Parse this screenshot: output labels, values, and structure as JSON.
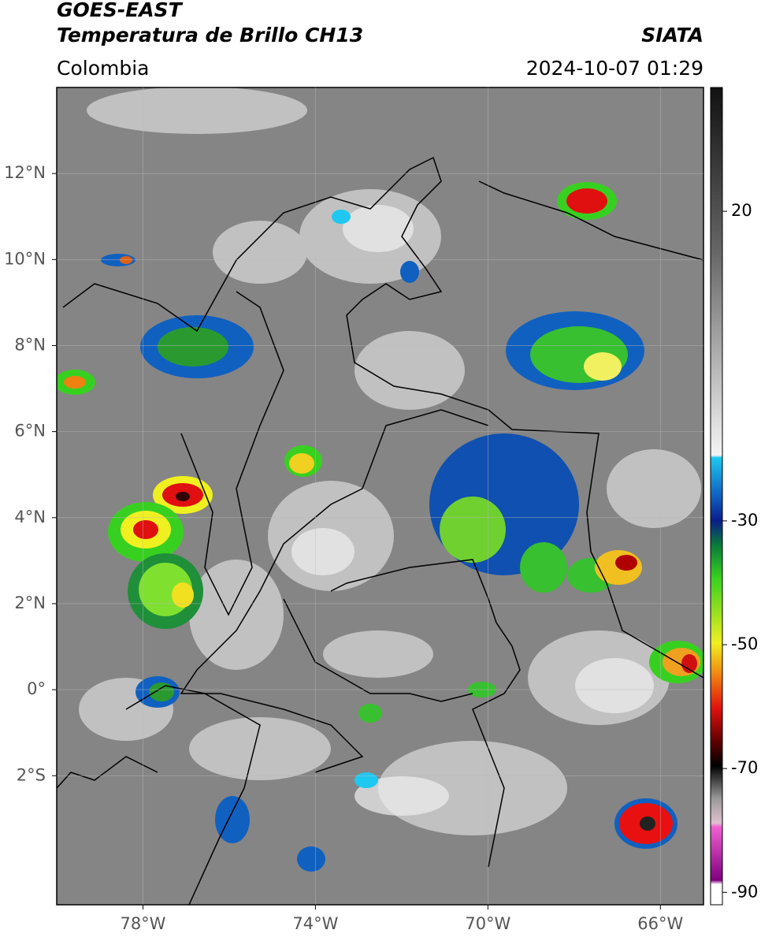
{
  "header": {
    "title": "GOES-EAST",
    "subtitle": "Temperatura de Brillo CH13",
    "source": "SIATA",
    "region": "Colombia",
    "datetime": "2024-10-07 01:29"
  },
  "map": {
    "xlim": [
      -80,
      -65
    ],
    "ylim": [
      -5,
      14
    ],
    "xticks": [
      {
        "value": -78,
        "label": "78°W"
      },
      {
        "value": -74,
        "label": "74°W"
      },
      {
        "value": -70,
        "label": "70°W"
      },
      {
        "value": -66,
        "label": "66°W"
      }
    ],
    "yticks": [
      {
        "value": 12,
        "label": "12°N"
      },
      {
        "value": 10,
        "label": "10°N"
      },
      {
        "value": 8,
        "label": "8°N"
      },
      {
        "value": 6,
        "label": "6°N"
      },
      {
        "value": 4,
        "label": "4°N"
      },
      {
        "value": 2,
        "label": "2°N"
      },
      {
        "value": 0,
        "label": "0°"
      },
      {
        "value": -2,
        "label": "2°S"
      }
    ],
    "grid": true
  },
  "colorbar": {
    "lim": [
      -92,
      40
    ],
    "ticks": [
      20,
      -30,
      -50,
      -70,
      -90
    ]
  }
}
